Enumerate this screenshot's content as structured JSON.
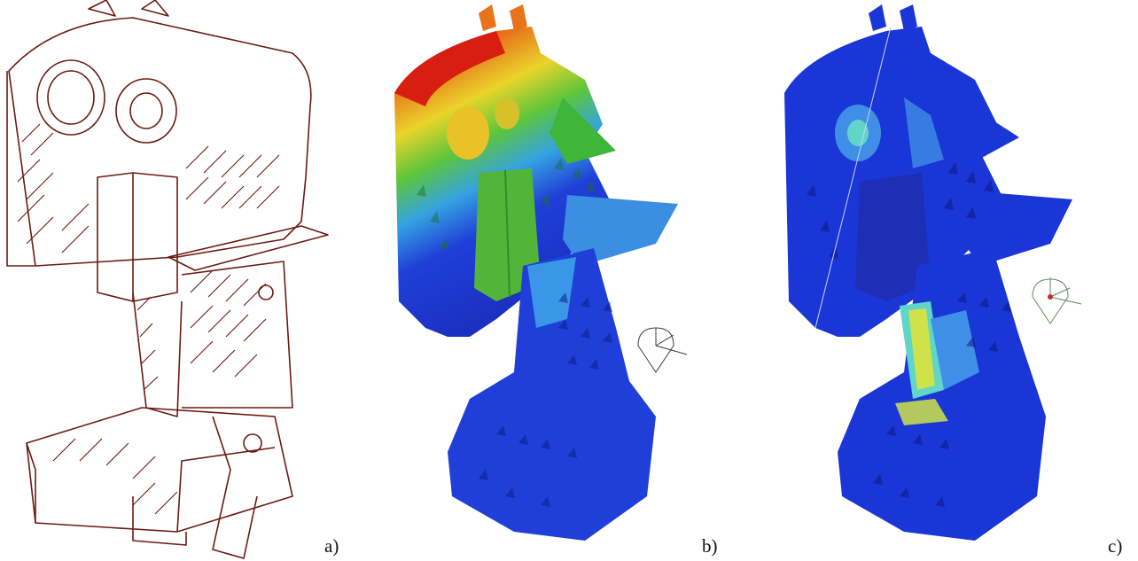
{
  "panels": [
    {
      "label": "a)",
      "view": "line-drawing",
      "line_color": "#6b1a12"
    },
    {
      "label": "b)",
      "view": "displacement-contour",
      "colors": [
        "#d81e10",
        "#e8731a",
        "#e9d52a",
        "#5cc63a",
        "#35a3e0",
        "#1f3fd8"
      ]
    },
    {
      "label": "c)",
      "view": "stress-contour",
      "colors": [
        "#1a36d6",
        "#3f8fe6",
        "#5fd6c8",
        "#cfe24a"
      ]
    }
  ]
}
